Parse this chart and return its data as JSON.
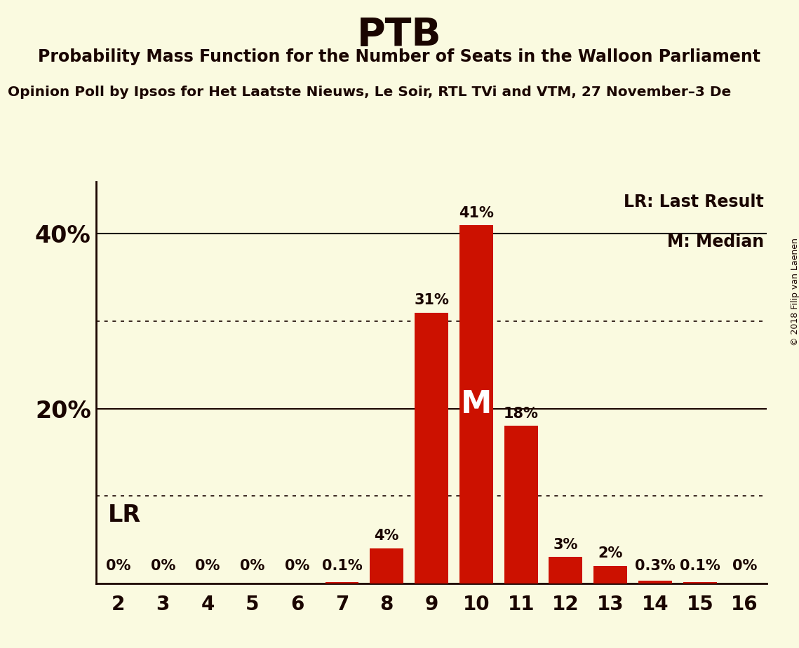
{
  "title": "PTB",
  "subtitle": "Probability Mass Function for the Number of Seats in the Walloon Parliament",
  "subsubtitle": "Opinion Poll by Ipsos for Het Laatste Nieuws, Le Soir, RTL TVi and VTM, 27 November–3 De",
  "copyright": "© 2018 Filip van Laenen",
  "categories": [
    2,
    3,
    4,
    5,
    6,
    7,
    8,
    9,
    10,
    11,
    12,
    13,
    14,
    15,
    16
  ],
  "values": [
    0.0,
    0.0,
    0.0,
    0.0,
    0.0,
    0.1,
    4.0,
    31.0,
    41.0,
    18.0,
    3.0,
    2.0,
    0.3,
    0.1,
    0.0
  ],
  "bar_color": "#CC1100",
  "background_color": "#FAFAE0",
  "text_color": "#1a0500",
  "median_seat": 10,
  "median_label": "M",
  "lr_label": "LR",
  "legend_lr": "LR: Last Result",
  "legend_m": "M: Median",
  "ylim": [
    0,
    46
  ],
  "solid_yticks": [
    20,
    40
  ],
  "dotted_yticks": [
    10,
    30
  ],
  "bar_labels": [
    "0%",
    "0%",
    "0%",
    "0%",
    "0%",
    "0.1%",
    "4%",
    "31%",
    "41%",
    "18%",
    "3%",
    "2%",
    "0.3%",
    "0.1%",
    "0%"
  ]
}
